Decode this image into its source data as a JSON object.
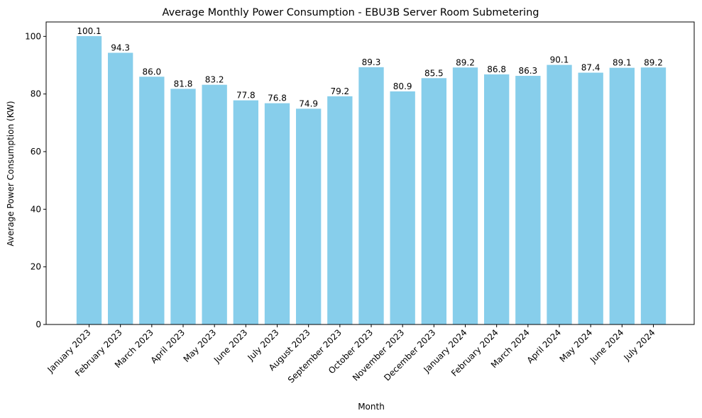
{
  "chart_data": {
    "type": "bar",
    "title": "Average Monthly Power Consumption - EBU3B Server Room Submetering",
    "xlabel": "Month",
    "ylabel": "Average Power Consumption (KW)",
    "ylim": [
      0,
      105
    ],
    "yticks": [
      0,
      20,
      40,
      60,
      80,
      100
    ],
    "grid": false,
    "bar_color": "#87CEEB",
    "categories": [
      "January 2023",
      "February 2023",
      "March 2023",
      "April 2023",
      "May 2023",
      "June 2023",
      "July 2023",
      "August 2023",
      "September 2023",
      "October 2023",
      "November 2023",
      "December 2023",
      "January 2024",
      "February 2024",
      "March 2024",
      "April 2024",
      "May 2024",
      "June 2024",
      "July 2024"
    ],
    "values": [
      100.1,
      94.3,
      86.0,
      81.8,
      83.2,
      77.8,
      76.8,
      74.9,
      79.2,
      89.3,
      80.9,
      85.5,
      89.2,
      86.8,
      86.3,
      90.1,
      87.4,
      89.1,
      89.2
    ],
    "value_labels": [
      "100.1",
      "94.3",
      "86.0",
      "81.8",
      "83.2",
      "77.8",
      "76.8",
      "74.9",
      "79.2",
      "89.3",
      "80.9",
      "85.5",
      "89.2",
      "86.8",
      "86.3",
      "90.1",
      "87.4",
      "89.1",
      "89.2"
    ]
  }
}
